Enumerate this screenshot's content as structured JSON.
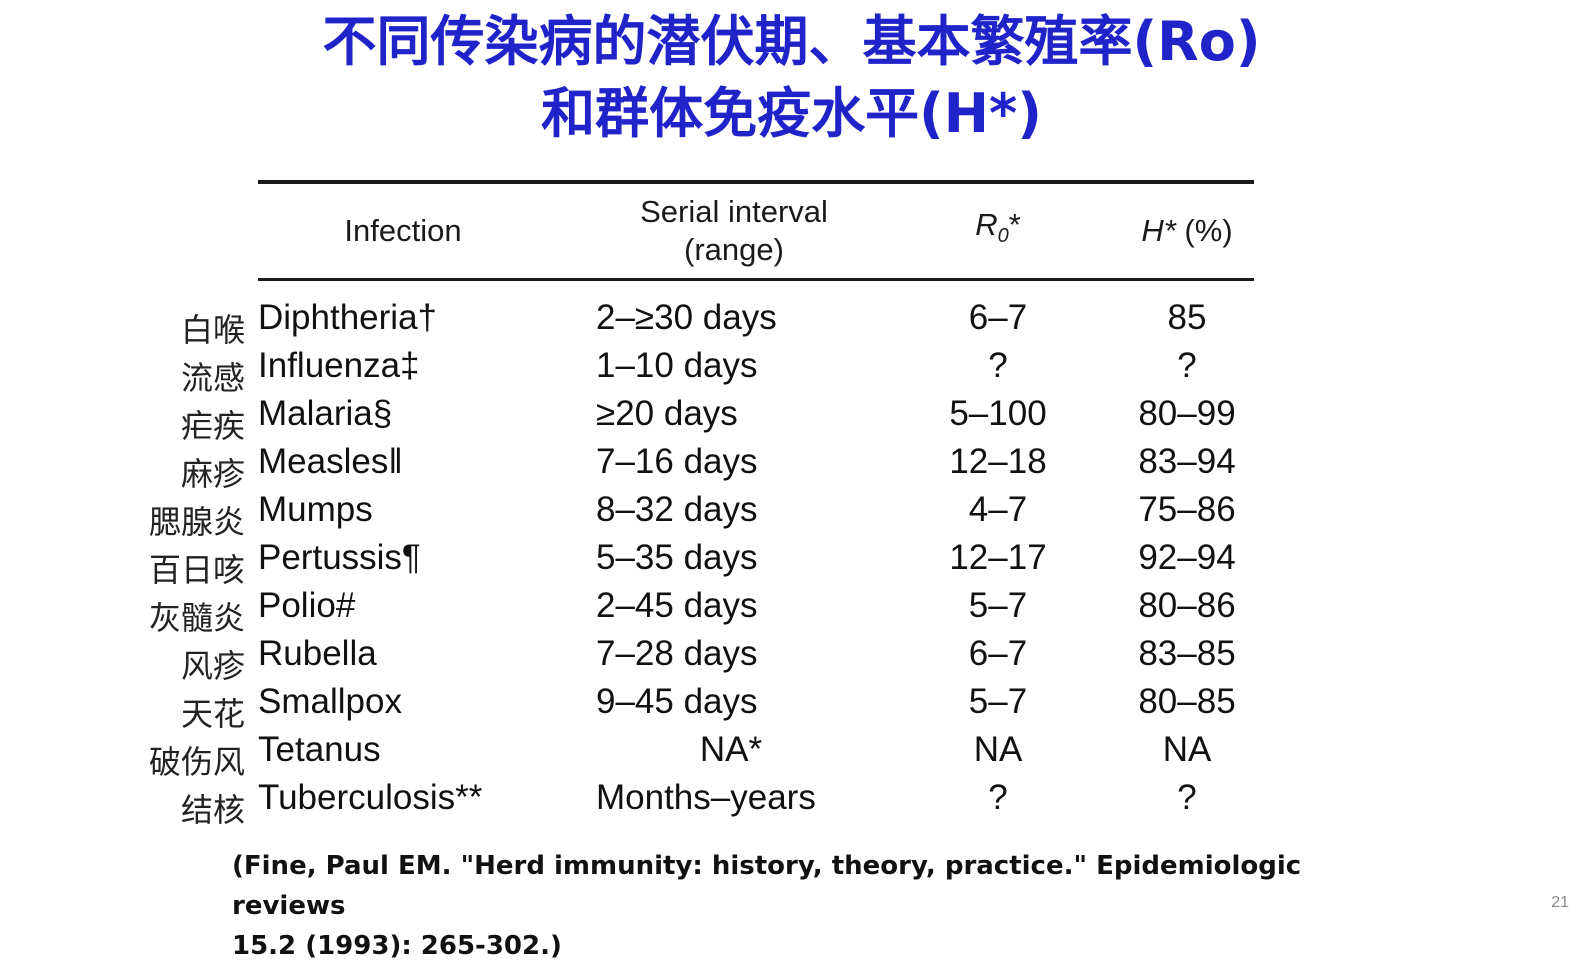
{
  "title": {
    "line1": "不同传染病的潜伏期、基本繁殖率(Ro)",
    "line2": "和群体免疫水平(H*)"
  },
  "table": {
    "headers": {
      "infection": "Infection",
      "serial_line1": "Serial interval",
      "serial_line2": "(range)",
      "r0_main": "R",
      "r0_sub": "0",
      "r0_suffix": "*",
      "h_italic": "H*",
      "h_suffix": " (%)"
    },
    "rows": [
      {
        "cn": "白喉",
        "infection": "Diphtheria†",
        "serial": "2–≥30 days",
        "r0": "6–7",
        "h": "85"
      },
      {
        "cn": "流感",
        "infection": "Influenza‡",
        "serial": "1–10 days",
        "r0": "?",
        "h": "?"
      },
      {
        "cn": "疟疾",
        "infection": "Malaria§",
        "serial": "≥20 days",
        "r0": "5–100",
        "h": "80–99"
      },
      {
        "cn": "麻疹",
        "infection": "Measles‖",
        "serial": "7–16 days",
        "r0": "12–18",
        "h": "83–94"
      },
      {
        "cn": "腮腺炎",
        "infection": "Mumps",
        "serial": "8–32 days",
        "r0": "4–7",
        "h": "75–86"
      },
      {
        "cn": "百日咳",
        "infection": "Pertussis¶",
        "serial": "5–35 days",
        "r0": "12–17",
        "h": "92–94"
      },
      {
        "cn": "灰髓炎",
        "infection": "Polio#",
        "serial": "2–45 days",
        "r0": "5–7",
        "h": "80–86"
      },
      {
        "cn": "风疹",
        "infection": "Rubella",
        "serial": "7–28 days",
        "r0": "6–7",
        "h": "83–85"
      },
      {
        "cn": "天花",
        "infection": "Smallpox",
        "serial": "9–45 days",
        "r0": "5–7",
        "h": "80–85"
      },
      {
        "cn": "破伤风",
        "infection": "Tetanus",
        "serial": "NA*",
        "r0": "NA",
        "h": "NA"
      },
      {
        "cn": "结核",
        "infection": "Tuberculosis**",
        "serial": "Months–years",
        "r0": "?",
        "h": "?"
      }
    ]
  },
  "citation": {
    "line1": "(Fine, Paul EM. \"Herd immunity: history, theory, practice.\" Epidemiologic reviews",
    "line2": "15.2 (1993): 265-302.)"
  },
  "page_number": "21"
}
